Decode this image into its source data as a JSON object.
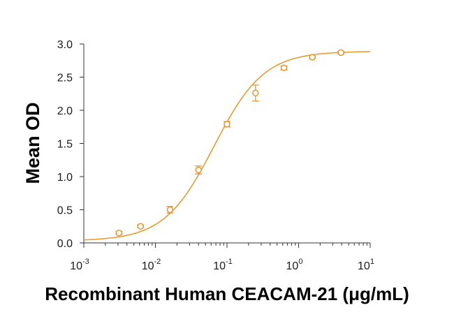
{
  "chart_data": {
    "type": "scatter",
    "title": "",
    "xlabel": "Recombinant Human CEACAM-21 (μg/mL)",
    "ylabel": "Mean OD",
    "x_scale": "log",
    "xlim": [
      0.001,
      10
    ],
    "ylim": [
      0,
      3
    ],
    "x_ticks": [
      {
        "base": "10",
        "exp": "-3"
      },
      {
        "base": "10",
        "exp": "-2"
      },
      {
        "base": "10",
        "exp": "-1"
      },
      {
        "base": "10",
        "exp": "0"
      },
      {
        "base": "10",
        "exp": "1"
      }
    ],
    "y_ticks": [
      "0.0",
      "0.5",
      "1.0",
      "1.5",
      "2.0",
      "2.5",
      "3.0"
    ],
    "grid": false,
    "series_color": "#E8952A",
    "points": [
      {
        "x": 0.0031,
        "y": 0.15,
        "err": 0.02
      },
      {
        "x": 0.0062,
        "y": 0.25,
        "err": 0.02
      },
      {
        "x": 0.016,
        "y": 0.5,
        "err": 0.05
      },
      {
        "x": 0.04,
        "y": 1.1,
        "err": 0.06
      },
      {
        "x": 0.1,
        "y": 1.79,
        "err": 0.04
      },
      {
        "x": 0.25,
        "y": 2.26,
        "err": 0.12
      },
      {
        "x": 0.625,
        "y": 2.64,
        "err": 0.03
      },
      {
        "x": 1.56,
        "y": 2.8,
        "err": 0.02
      },
      {
        "x": 3.9,
        "y": 2.87,
        "err": 0.02
      }
    ],
    "fit_curve": {
      "model": "4PL",
      "bottom": 0.03,
      "top": 2.89,
      "ec50": 0.066,
      "hill": 1.25
    }
  }
}
